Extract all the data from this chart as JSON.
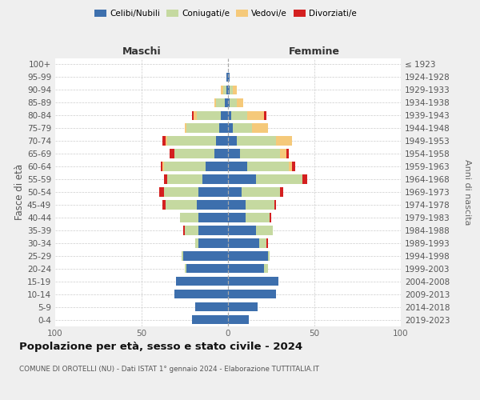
{
  "age_groups": [
    "0-4",
    "5-9",
    "10-14",
    "15-19",
    "20-24",
    "25-29",
    "30-34",
    "35-39",
    "40-44",
    "45-49",
    "50-54",
    "55-59",
    "60-64",
    "65-69",
    "70-74",
    "75-79",
    "80-84",
    "85-89",
    "90-94",
    "95-99",
    "100+"
  ],
  "birth_years": [
    "2019-2023",
    "2014-2018",
    "2009-2013",
    "2004-2008",
    "1999-2003",
    "1994-1998",
    "1989-1993",
    "1984-1988",
    "1979-1983",
    "1974-1978",
    "1969-1973",
    "1964-1968",
    "1959-1963",
    "1954-1958",
    "1949-1953",
    "1944-1948",
    "1939-1943",
    "1934-1938",
    "1929-1933",
    "1924-1928",
    "≤ 1923"
  ],
  "colors": {
    "celibe": "#3d6fad",
    "coniugato": "#c5d9a0",
    "vedovo": "#f5c97a",
    "divorziato": "#d42020"
  },
  "maschi": {
    "celibe": [
      21,
      19,
      31,
      30,
      24,
      26,
      17,
      17,
      17,
      18,
      17,
      15,
      13,
      8,
      7,
      5,
      4,
      2,
      1,
      1,
      0
    ],
    "coniugato": [
      0,
      0,
      0,
      0,
      1,
      1,
      2,
      8,
      11,
      18,
      20,
      20,
      24,
      23,
      28,
      19,
      14,
      5,
      2,
      0,
      0
    ],
    "vedovo": [
      0,
      0,
      0,
      0,
      0,
      0,
      0,
      0,
      0,
      0,
      0,
      0,
      1,
      0,
      1,
      1,
      2,
      1,
      1,
      0,
      0
    ],
    "divorziato": [
      0,
      0,
      0,
      0,
      0,
      0,
      0,
      1,
      0,
      2,
      3,
      2,
      1,
      3,
      2,
      0,
      1,
      0,
      0,
      0,
      0
    ]
  },
  "femmine": {
    "nubile": [
      12,
      17,
      28,
      29,
      21,
      23,
      18,
      16,
      10,
      10,
      8,
      16,
      11,
      7,
      5,
      3,
      2,
      1,
      1,
      1,
      0
    ],
    "coniugata": [
      0,
      0,
      0,
      0,
      2,
      1,
      4,
      10,
      14,
      17,
      22,
      27,
      24,
      23,
      23,
      11,
      9,
      4,
      2,
      0,
      0
    ],
    "vedova": [
      0,
      0,
      0,
      0,
      0,
      0,
      0,
      0,
      0,
      0,
      0,
      0,
      2,
      4,
      9,
      9,
      10,
      4,
      2,
      0,
      0
    ],
    "divorziata": [
      0,
      0,
      0,
      0,
      0,
      0,
      1,
      0,
      1,
      1,
      2,
      3,
      2,
      1,
      0,
      0,
      1,
      0,
      0,
      0,
      0
    ]
  },
  "xlim": 100,
  "title": "Popolazione per età, sesso e stato civile - 2024",
  "subtitle": "COMUNE DI OROTELLI (NU) - Dati ISTAT 1° gennaio 2024 - Elaborazione TUTTITALIA.IT",
  "ylabel_left": "Fasce di età",
  "ylabel_right": "Anni di nascita",
  "label_maschi": "Maschi",
  "label_femmine": "Femmine",
  "legend_labels": [
    "Celibi/Nubili",
    "Coniugati/e",
    "Vedovi/e",
    "Divorziati/e"
  ],
  "bg_color": "#efefef",
  "plot_bg_color": "#ffffff",
  "grid_color": "#cccccc",
  "center_line_color": "#aaaaaa"
}
